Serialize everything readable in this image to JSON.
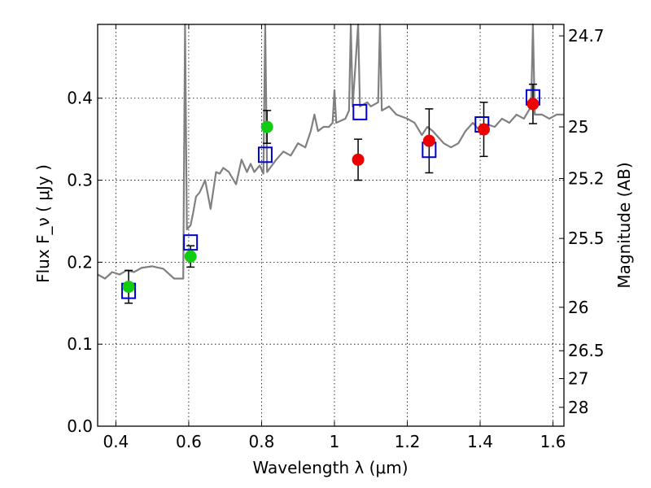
{
  "chart_data": {
    "type": "scatter",
    "xlabel": "Wavelength  λ (μm)",
    "ylabel_left": "Flux  F_ν  ( μJy )",
    "ylabel_right": "Magnitude (AB)",
    "xlim": [
      0.35,
      1.63
    ],
    "ylim": [
      0.0,
      0.49
    ],
    "grid": true,
    "grid_style": "dotted",
    "x_ticks": [
      0.4,
      0.6,
      0.8,
      1.0,
      1.2,
      1.4,
      1.6
    ],
    "x_tick_labels": [
      "0.4",
      "0.6",
      "0.8",
      "1",
      "1.2",
      "1.4",
      "1.6"
    ],
    "y_ticks": [
      0.0,
      0.1,
      0.2,
      0.3,
      0.4
    ],
    "y_tick_labels": [
      "0.0",
      "0.1",
      "0.2",
      "0.3",
      "0.4"
    ],
    "right_ticks": [
      {
        "label": "24.7",
        "flux": 0.476
      },
      {
        "label": "25",
        "flux": 0.365
      },
      {
        "label": "25.2",
        "flux": 0.302
      },
      {
        "label": "25.5",
        "flux": 0.229
      },
      {
        "label": "26",
        "flux": 0.145
      },
      {
        "label": "26.5",
        "flux": 0.092
      },
      {
        "label": "27",
        "flux": 0.058
      },
      {
        "label": "28",
        "flux": 0.023
      }
    ],
    "colors": {
      "spectrum": "#808080",
      "green": "#11cc11",
      "red": "#ee0000",
      "model_box": "#0000cc",
      "errorbar": "#000000"
    },
    "spectrum": [
      [
        0.35,
        0.185
      ],
      [
        0.37,
        0.18
      ],
      [
        0.39,
        0.188
      ],
      [
        0.41,
        0.185
      ],
      [
        0.43,
        0.19
      ],
      [
        0.45,
        0.188
      ],
      [
        0.47,
        0.193
      ],
      [
        0.5,
        0.195
      ],
      [
        0.53,
        0.192
      ],
      [
        0.56,
        0.18
      ],
      [
        0.585,
        0.18
      ],
      [
        0.59,
        0.49
      ],
      [
        0.595,
        0.24
      ],
      [
        0.605,
        0.245
      ],
      [
        0.612,
        0.26
      ],
      [
        0.62,
        0.28
      ],
      [
        0.63,
        0.285
      ],
      [
        0.645,
        0.3
      ],
      [
        0.66,
        0.265
      ],
      [
        0.675,
        0.31
      ],
      [
        0.685,
        0.308
      ],
      [
        0.695,
        0.315
      ],
      [
        0.71,
        0.31
      ],
      [
        0.73,
        0.295
      ],
      [
        0.745,
        0.325
      ],
      [
        0.76,
        0.31
      ],
      [
        0.77,
        0.32
      ],
      [
        0.78,
        0.31
      ],
      [
        0.795,
        0.318
      ],
      [
        0.805,
        0.308
      ],
      [
        0.81,
        0.49
      ],
      [
        0.815,
        0.31
      ],
      [
        0.84,
        0.325
      ],
      [
        0.86,
        0.335
      ],
      [
        0.88,
        0.33
      ],
      [
        0.9,
        0.345
      ],
      [
        0.92,
        0.34
      ],
      [
        0.935,
        0.36
      ],
      [
        0.945,
        0.38
      ],
      [
        0.955,
        0.36
      ],
      [
        0.97,
        0.365
      ],
      [
        0.985,
        0.365
      ],
      [
        0.995,
        0.37
      ],
      [
        1.0,
        0.41
      ],
      [
        1.005,
        0.37
      ],
      [
        1.03,
        0.375
      ],
      [
        1.04,
        0.385
      ],
      [
        1.045,
        0.49
      ],
      [
        1.05,
        0.39
      ],
      [
        1.065,
        0.49
      ],
      [
        1.07,
        0.39
      ],
      [
        1.09,
        0.395
      ],
      [
        1.1,
        0.39
      ],
      [
        1.12,
        0.395
      ],
      [
        1.125,
        0.49
      ],
      [
        1.13,
        0.385
      ],
      [
        1.15,
        0.39
      ],
      [
        1.17,
        0.38
      ],
      [
        1.2,
        0.375
      ],
      [
        1.22,
        0.37
      ],
      [
        1.24,
        0.355
      ],
      [
        1.255,
        0.365
      ],
      [
        1.27,
        0.36
      ],
      [
        1.29,
        0.35
      ],
      [
        1.3,
        0.345
      ],
      [
        1.32,
        0.34
      ],
      [
        1.34,
        0.345
      ],
      [
        1.36,
        0.36
      ],
      [
        1.38,
        0.37
      ],
      [
        1.4,
        0.36
      ],
      [
        1.42,
        0.368
      ],
      [
        1.44,
        0.365
      ],
      [
        1.46,
        0.375
      ],
      [
        1.48,
        0.37
      ],
      [
        1.5,
        0.38
      ],
      [
        1.52,
        0.375
      ],
      [
        1.54,
        0.39
      ],
      [
        1.545,
        0.49
      ],
      [
        1.55,
        0.38
      ],
      [
        1.57,
        0.38
      ],
      [
        1.59,
        0.375
      ],
      [
        1.61,
        0.38
      ],
      [
        1.63,
        0.38
      ]
    ],
    "green_points": [
      {
        "x": 0.435,
        "y": 0.17,
        "err": 0.02
      },
      {
        "x": 0.605,
        "y": 0.207,
        "err": 0.013
      },
      {
        "x": 0.815,
        "y": 0.365,
        "err": 0.02
      }
    ],
    "red_points": [
      {
        "x": 1.065,
        "y": 0.325,
        "err": 0.025
      },
      {
        "x": 1.26,
        "y": 0.348,
        "err": 0.039
      },
      {
        "x": 1.41,
        "y": 0.362,
        "err": 0.033
      },
      {
        "x": 1.545,
        "y": 0.393,
        "err": 0.024
      }
    ],
    "model_boxes": [
      {
        "x": 0.435,
        "y": 0.165
      },
      {
        "x": 0.605,
        "y": 0.224
      },
      {
        "x": 0.81,
        "y": 0.331
      },
      {
        "x": 1.07,
        "y": 0.383
      },
      {
        "x": 1.26,
        "y": 0.337
      },
      {
        "x": 1.405,
        "y": 0.368
      },
      {
        "x": 1.545,
        "y": 0.401
      }
    ]
  }
}
